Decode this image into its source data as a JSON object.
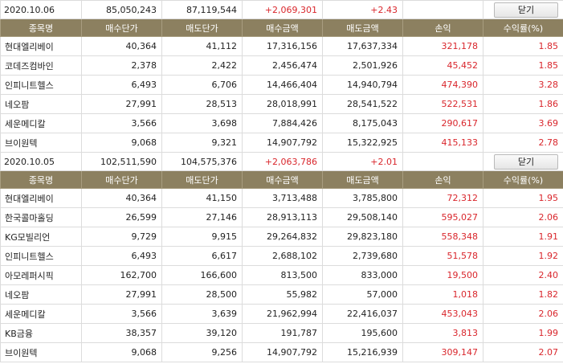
{
  "columns": [
    "종목명",
    "매수단가",
    "매도단가",
    "매수금액",
    "매도금액",
    "손익",
    "수익률(%)"
  ],
  "close_label": "닫기",
  "blocks": [
    {
      "date": "2020.10.06",
      "total_buy": "85,050,243",
      "total_sell": "87,119,544",
      "total_pnl": "+2,069,301",
      "total_rate": "+2.43",
      "rows": [
        [
          "현대엘리베이",
          "40,364",
          "41,112",
          "17,316,156",
          "17,637,334",
          "321,178",
          "1.85"
        ],
        [
          "코데즈컴바인",
          "2,378",
          "2,422",
          "2,456,474",
          "2,501,926",
          "45,452",
          "1.85"
        ],
        [
          "인피니트헬스",
          "6,493",
          "6,706",
          "14,466,404",
          "14,940,794",
          "474,390",
          "3.28"
        ],
        [
          "네오팜",
          "27,991",
          "28,513",
          "28,018,991",
          "28,541,522",
          "522,531",
          "1.86"
        ],
        [
          "세운메디칼",
          "3,566",
          "3,698",
          "7,884,426",
          "8,175,043",
          "290,617",
          "3.69"
        ],
        [
          "브이원텍",
          "9,068",
          "9,321",
          "14,907,792",
          "15,322,925",
          "415,133",
          "2.78"
        ]
      ]
    },
    {
      "date": "2020.10.05",
      "total_buy": "102,511,590",
      "total_sell": "104,575,376",
      "total_pnl": "+2,063,786",
      "total_rate": "+2.01",
      "rows": [
        [
          "현대엘리베이",
          "40,364",
          "41,150",
          "3,713,488",
          "3,785,800",
          "72,312",
          "1.95"
        ],
        [
          "한국콜마홀딩",
          "26,599",
          "27,146",
          "28,913,113",
          "29,508,140",
          "595,027",
          "2.06"
        ],
        [
          "KG모빌리언",
          "9,729",
          "9,915",
          "29,264,832",
          "29,823,180",
          "558,348",
          "1.91"
        ],
        [
          "인피니트헬스",
          "6,493",
          "6,617",
          "2,688,102",
          "2,739,680",
          "51,578",
          "1.92"
        ],
        [
          "아모레퍼시픽",
          "162,700",
          "166,600",
          "813,500",
          "833,000",
          "19,500",
          "2.40"
        ],
        [
          "네오팜",
          "27,991",
          "28,500",
          "55,982",
          "57,000",
          "1,018",
          "1.82"
        ],
        [
          "세운메디칼",
          "3,566",
          "3,639",
          "21,962,994",
          "22,416,037",
          "453,043",
          "2.06"
        ],
        [
          "KB금융",
          "38,357",
          "39,120",
          "191,787",
          "195,600",
          "3,813",
          "1.99"
        ],
        [
          "브이원텍",
          "9,068",
          "9,256",
          "14,907,792",
          "15,216,939",
          "309,147",
          "2.07"
        ]
      ]
    }
  ],
  "colors": {
    "header_bg": "#8c8060",
    "profit_red": "#d9262c"
  }
}
